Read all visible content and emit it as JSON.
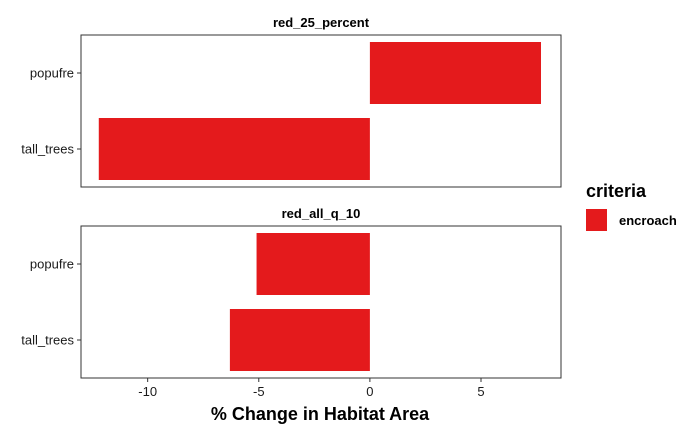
{
  "chart_data": {
    "type": "bar",
    "orientation": "horizontal",
    "xlabel": "% Change in Habitat Area",
    "ylabel": "",
    "xlim": [
      -13.0,
      8.6
    ],
    "x_ticks": [
      -10,
      -5,
      0,
      5
    ],
    "x_tick_labels": [
      "-10",
      "-5",
      "0",
      "5"
    ],
    "categories": [
      "popufre",
      "tall_trees"
    ],
    "grid": false,
    "legend": {
      "title": "criteria",
      "position": "right",
      "items": [
        {
          "label": "encroach",
          "color": "#E41A1C"
        }
      ]
    },
    "panels": [
      {
        "title": "red_25_percent",
        "series": [
          {
            "name": "encroach",
            "values": [
              7.7,
              -12.2
            ]
          }
        ]
      },
      {
        "title": "red_all_q_10",
        "series": [
          {
            "name": "encroach",
            "values": [
              -5.1,
              -6.3
            ]
          }
        ]
      }
    ]
  }
}
